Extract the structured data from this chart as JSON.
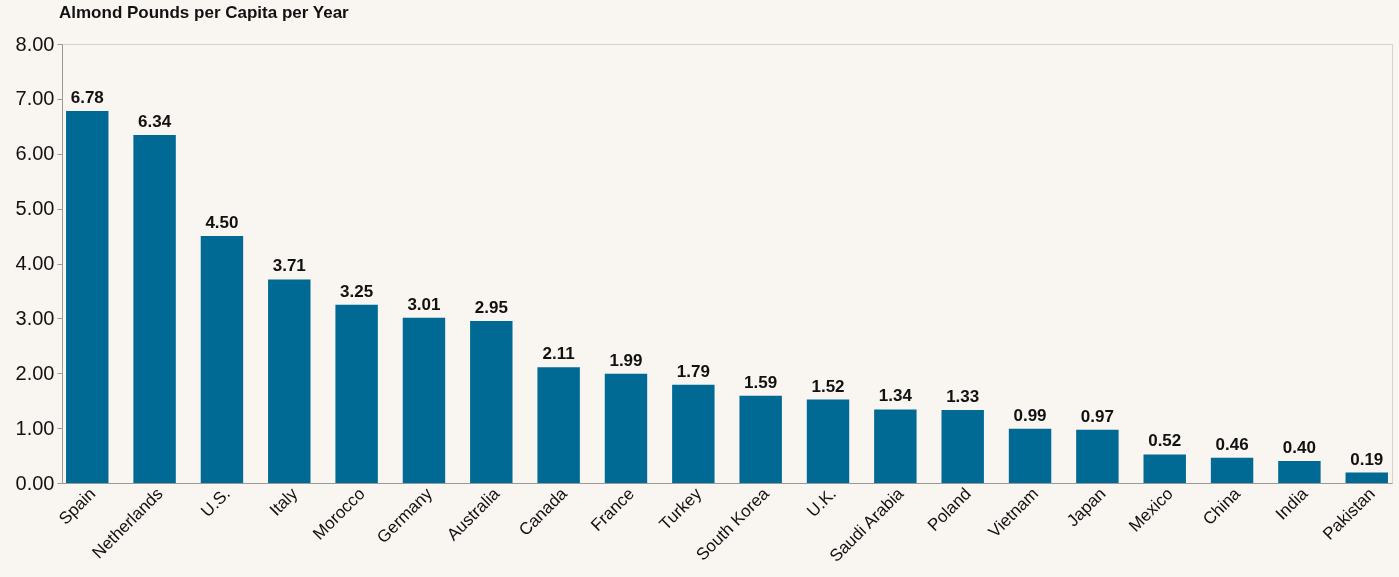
{
  "chart_data": {
    "type": "bar",
    "title": "Almond Pounds per Capita per Year",
    "categories": [
      "Spain",
      "Netherlands",
      "U.S.",
      "Italy",
      "Morocco",
      "Germany",
      "Australia",
      "Canada",
      "France",
      "Turkey",
      "South Korea",
      "U.K.",
      "Saudi Arabia",
      "Poland",
      "Vietnam",
      "Japan",
      "Mexico",
      "China",
      "India",
      "Pakistan"
    ],
    "values": [
      6.78,
      6.34,
      4.5,
      3.71,
      3.25,
      3.01,
      2.95,
      2.11,
      1.99,
      1.79,
      1.59,
      1.52,
      1.34,
      1.33,
      0.99,
      0.97,
      0.52,
      0.46,
      0.4,
      0.19
    ],
    "value_labels": [
      "6.78",
      "6.34",
      "4.50",
      "3.71",
      "3.25",
      "3.01",
      "2.95",
      "2.11",
      "1.99",
      "1.79",
      "1.59",
      "1.52",
      "1.34",
      "1.33",
      "0.99",
      "0.97",
      "0.52",
      "0.46",
      "0.40",
      "0.19"
    ],
    "color": "#006994",
    "ylim": [
      0,
      8
    ],
    "yticks": [
      {
        "value": 0,
        "label": "0.00"
      },
      {
        "value": 1,
        "label": "1.00"
      },
      {
        "value": 2,
        "label": "2.00"
      },
      {
        "value": 3,
        "label": "3.00"
      },
      {
        "value": 4,
        "label": "4.00"
      },
      {
        "value": 5,
        "label": "5.00"
      },
      {
        "value": 6,
        "label": "6.00"
      },
      {
        "value": 7,
        "label": "7.00"
      },
      {
        "value": 8,
        "label": "8.00"
      }
    ],
    "grid": false
  }
}
